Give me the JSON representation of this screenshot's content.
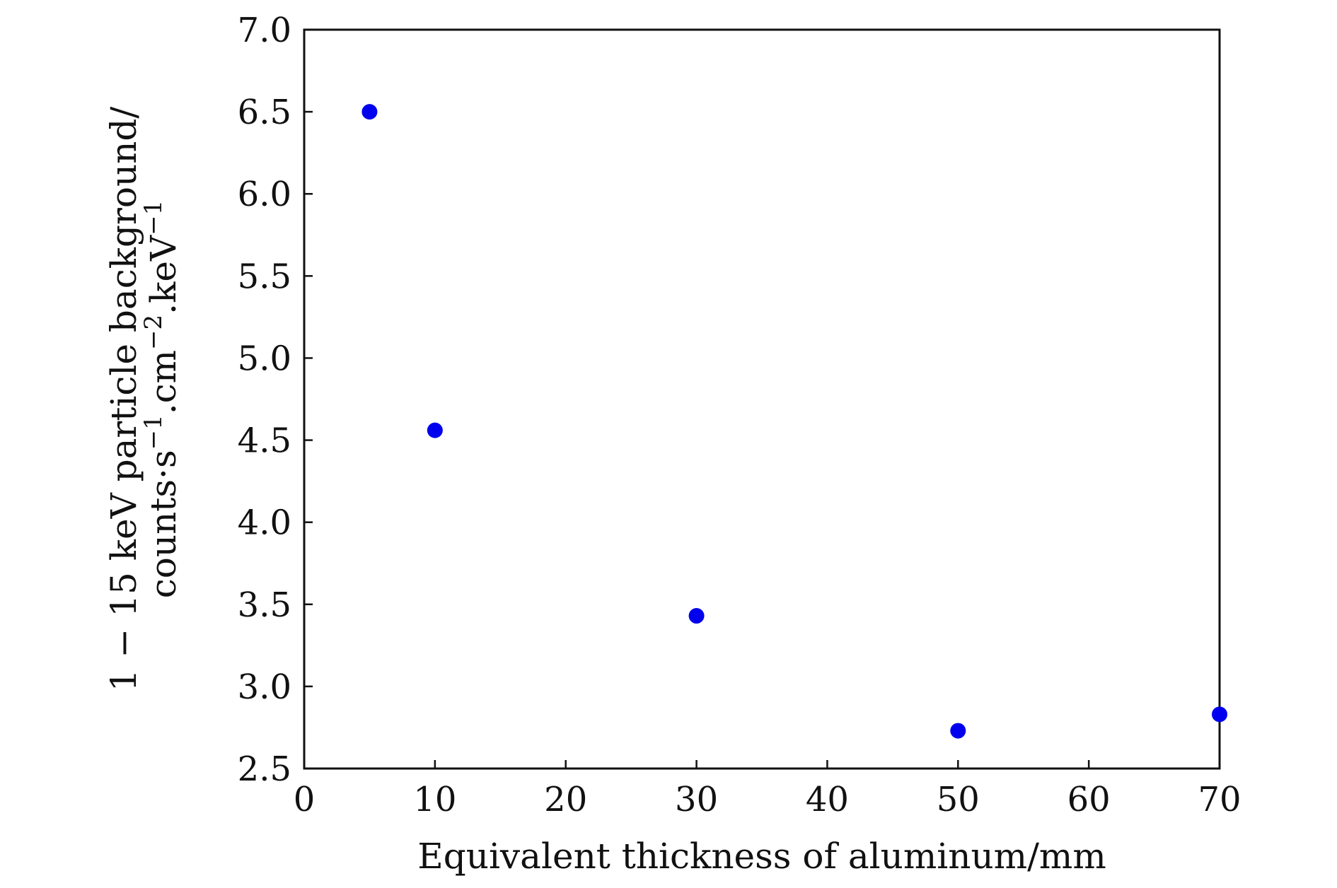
{
  "chart_data": {
    "type": "scatter",
    "title": "",
    "xlabel": "Equivalent thickness of aluminum/mm",
    "ylabel_line1": "1 − 15 keV particle background/",
    "ylabel_line2_base": "counts·s",
    "ylabel_line2_exp1": "−1",
    "ylabel_line2_mid1": ".cm",
    "ylabel_line2_exp2": "−2",
    "ylabel_line2_mid2": ".keV",
    "ylabel_line2_exp3": "−1",
    "xlim": [
      0,
      70
    ],
    "ylim": [
      2.5,
      7.0
    ],
    "xticks": [
      0,
      10,
      20,
      30,
      40,
      50,
      60,
      70
    ],
    "xtick_labels": [
      "0",
      "10",
      "20",
      "30",
      "40",
      "50",
      "60",
      "70"
    ],
    "yticks": [
      2.5,
      3.0,
      3.5,
      4.0,
      4.5,
      5.0,
      5.5,
      6.0,
      6.5,
      7.0
    ],
    "ytick_labels": [
      "2.5",
      "3.0",
      "3.5",
      "4.0",
      "4.5",
      "5.0",
      "5.5",
      "6.0",
      "6.5",
      "7.0"
    ],
    "grid": false,
    "series": [
      {
        "color": "#0000ee",
        "points": [
          {
            "x": 5,
            "y": 6.5
          },
          {
            "x": 10,
            "y": 4.56
          },
          {
            "x": 30,
            "y": 3.43
          },
          {
            "x": 50,
            "y": 2.73
          },
          {
            "x": 70,
            "y": 2.83
          }
        ]
      }
    ]
  }
}
